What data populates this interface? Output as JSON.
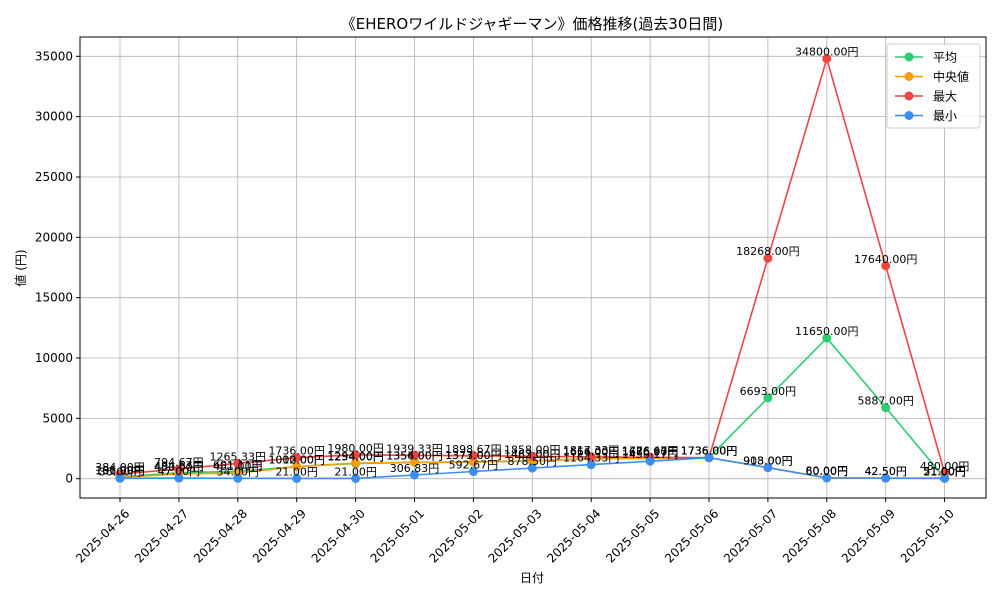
{
  "chart_data": {
    "type": "line",
    "title": "《EHEROワイルドジャギーマン》価格推移(過去30日間)",
    "xlabel": "日付",
    "ylabel": "値 (円)",
    "ylim": [
      -1600,
      36600
    ],
    "yticks": [
      0,
      5000,
      10000,
      15000,
      20000,
      25000,
      30000,
      35000
    ],
    "grid": true,
    "legend_position": "top-right",
    "label_suffix": "円",
    "categories": [
      "2025-04-26",
      "2025-04-27",
      "2025-04-28",
      "2025-04-29",
      "2025-04-30",
      "2025-05-01",
      "2025-05-02",
      "2025-05-03",
      "2025-05-04",
      "2025-05-05",
      "2025-05-06",
      "2025-05-07",
      "2025-05-08",
      "2025-05-09",
      "2025-05-10"
    ],
    "series": [
      {
        "name": "平均",
        "color": "#2ecc71",
        "values": [
          136,
          494.67,
          601.11,
          1012,
          1254,
          1354,
          1373,
          1462,
          1664,
          1676.97,
          1736,
          6693,
          11650,
          5887,
          51
        ]
      },
      {
        "name": "中央値",
        "color": "#f5a000",
        "values": [
          101,
          400,
          461,
          1000,
          1294,
          1356,
          1377,
          1483,
          1656,
          1686,
          1736,
          913,
          80,
          42.5,
          51
        ]
      },
      {
        "name": "最大",
        "color": "#ef4444",
        "values": [
          384,
          794.67,
          1265.33,
          1736,
          1980,
          1939.33,
          1898.67,
          1858,
          1817.33,
          1776.67,
          1736,
          18268,
          34800,
          17640,
          480
        ]
      },
      {
        "name": "最小",
        "color": "#3b8ef0",
        "values": [
          36,
          47,
          34,
          21,
          21,
          306.83,
          592.67,
          878.5,
          1164.33,
          1450.17,
          1736,
          908,
          60,
          42.5,
          21
        ]
      }
    ]
  }
}
